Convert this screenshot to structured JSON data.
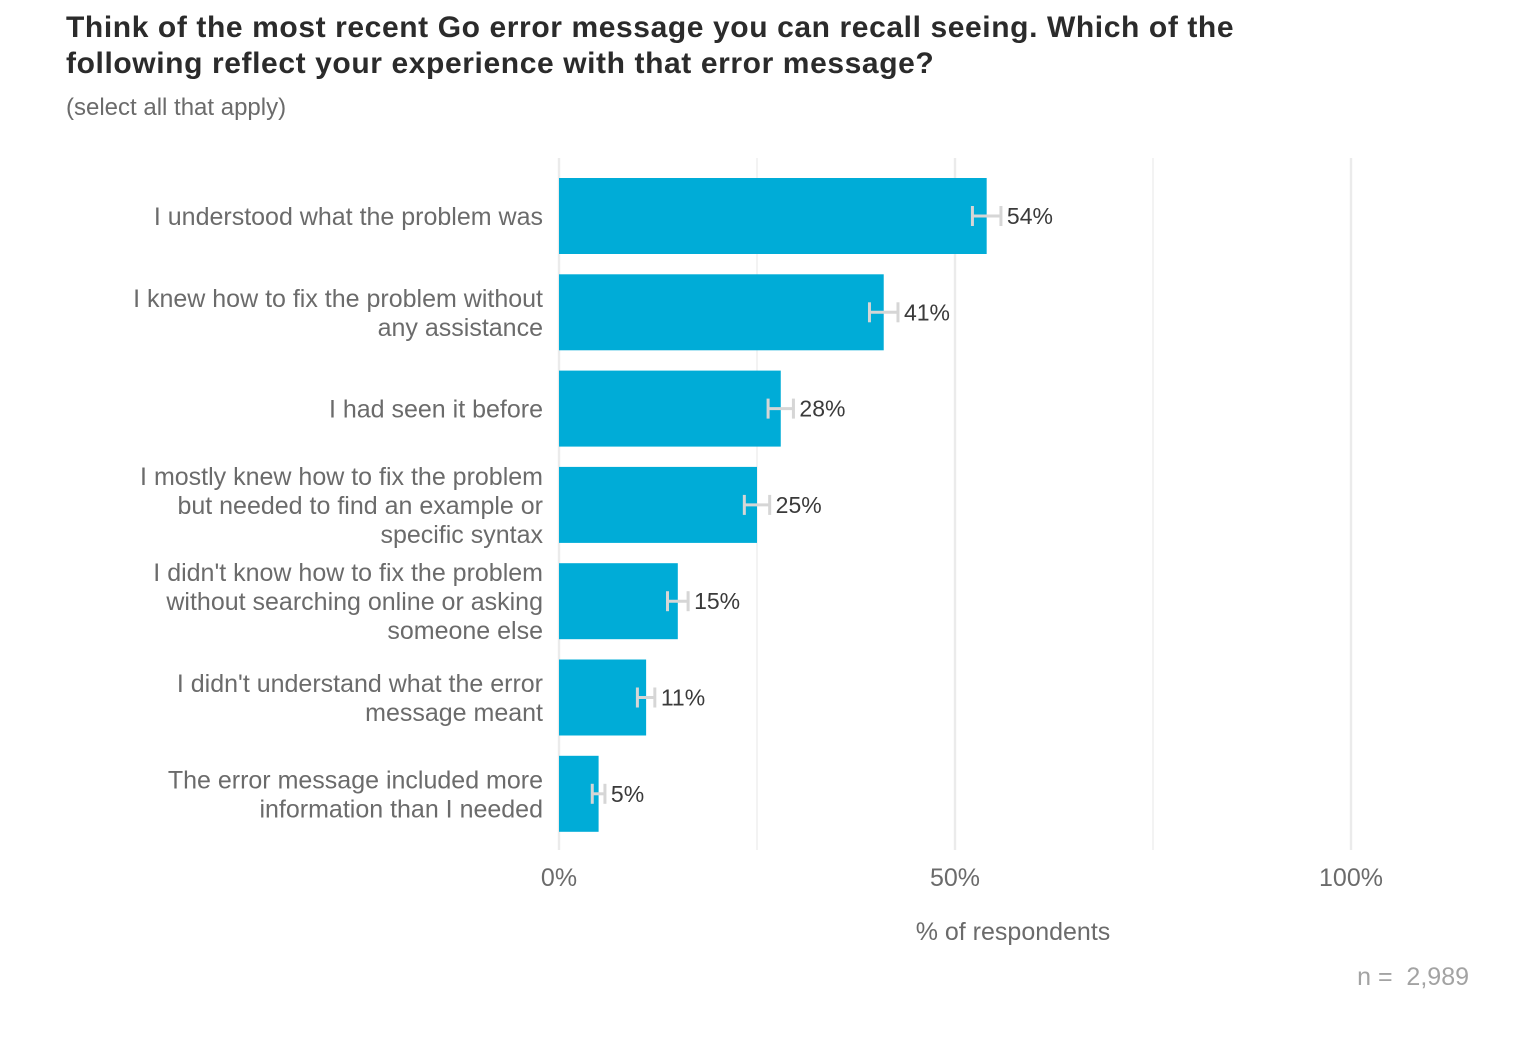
{
  "header": {
    "title_lines": [
      "Think of the most recent Go error message you can recall seeing. Which of the",
      "following reflect your experience with that error message?"
    ],
    "subtitle": "(select all that apply)"
  },
  "footer": {
    "n_label": "n =  2,989"
  },
  "colors": {
    "bar": "#00acd7",
    "grid": "#ebebeb",
    "error_bar": "#d6d6d6"
  },
  "chart_data": {
    "type": "bar",
    "orientation": "horizontal",
    "title": "Think of the most recent Go error message you can recall seeing. Which of the following reflect your experience with that error message?",
    "subtitle": "(select all that apply)",
    "xlabel": "% of respondents",
    "ylabel": "",
    "xlim": [
      0,
      100
    ],
    "x_ticks": [
      0,
      50,
      100
    ],
    "x_tick_labels": [
      "0%",
      "50%",
      "100%"
    ],
    "grid": true,
    "categories": [
      [
        "I understood what the problem was"
      ],
      [
        "I knew how to fix the problem without",
        "any assistance"
      ],
      [
        "I had seen it before"
      ],
      [
        "I mostly knew how to fix the problem",
        "but needed to find an example or",
        "specific syntax"
      ],
      [
        "I didn't know how to fix the problem",
        "without searching online or asking",
        "someone else"
      ],
      [
        "I didn't understand what the error",
        "message meant"
      ],
      [
        "The error message included more",
        "information than I needed"
      ]
    ],
    "values": [
      54,
      41,
      28,
      25,
      15,
      11,
      5
    ],
    "value_labels": [
      "54%",
      "41%",
      "28%",
      "25%",
      "15%",
      "11%",
      "5%"
    ],
    "error_bars": [
      [
        52.2,
        55.8
      ],
      [
        39.2,
        42.8
      ],
      [
        26.4,
        29.6
      ],
      [
        23.4,
        26.6
      ],
      [
        13.7,
        16.3
      ],
      [
        9.9,
        12.1
      ],
      [
        4.2,
        5.8
      ]
    ]
  }
}
